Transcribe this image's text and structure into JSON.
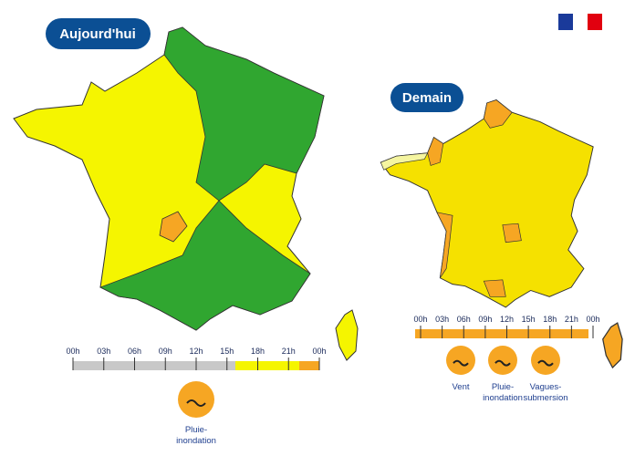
{
  "today": {
    "title": "Aujourd'hui",
    "timeline": [
      "00h",
      "03h",
      "06h",
      "09h",
      "12h",
      "15h",
      "18h",
      "21h",
      "00h"
    ],
    "hazards": [
      {
        "label": [
          "Pluie-",
          "inondation"
        ]
      }
    ]
  },
  "tomorrow": {
    "title": "Demain",
    "timeline": [
      "00h",
      "03h",
      "06h",
      "09h",
      "12h",
      "15h",
      "18h",
      "21h",
      "00h"
    ],
    "hazards": [
      {
        "label": [
          "Vent"
        ]
      },
      {
        "label": [
          "Pluie-",
          "inondation"
        ]
      },
      {
        "label": [
          "Vagues-",
          "submersion"
        ]
      }
    ]
  }
}
